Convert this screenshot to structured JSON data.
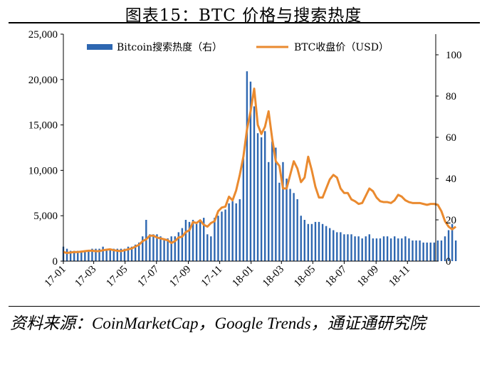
{
  "title": "图表15：BTC 价格与搜索热度",
  "source": "资料来源：CoinMarketCap，Google Trends，通证通研究院",
  "colors": {
    "bar": "#2e67b1",
    "line": "#ea8a2f",
    "axis": "#000000"
  },
  "chart_data": {
    "type": "bar+line",
    "title": "图表15：BTC 价格与搜索热度",
    "x_ticks": [
      "17-01",
      "17-03",
      "17-05",
      "17-07",
      "17-09",
      "17-11",
      "18-01",
      "18-03",
      "18-05",
      "18-07",
      "18-09",
      "18-11"
    ],
    "y_left": {
      "min": 0,
      "max": 25000,
      "ticks": [
        "0",
        "5,000",
        "10,000",
        "15,000",
        "20,000",
        "25,000"
      ]
    },
    "y_right": {
      "min": 0,
      "max": 110,
      "ticks": [
        "0",
        "20",
        "40",
        "60",
        "80",
        "100"
      ]
    },
    "grid": false,
    "legend_position": "top",
    "series": [
      {
        "name": "Bitcoin搜索热度（右）",
        "type": "bar",
        "axis": "right",
        "x_start": "2017-01-01",
        "interval_days": 7,
        "values": [
          7,
          6,
          5,
          5,
          5,
          5,
          5,
          5,
          6,
          6,
          6,
          7,
          6,
          6,
          6,
          6,
          6,
          6,
          7,
          7,
          8,
          9,
          12,
          20,
          13,
          13,
          13,
          12,
          11,
          11,
          12,
          12,
          14,
          16,
          20,
          19,
          20,
          18,
          20,
          21,
          13,
          12,
          21,
          22,
          24,
          25,
          28,
          29,
          28,
          30,
          50,
          92,
          87,
          75,
          62,
          60,
          63,
          48,
          58,
          55,
          38,
          48,
          40,
          35,
          33,
          30,
          22,
          20,
          18,
          18,
          19,
          19,
          18,
          17,
          16,
          15,
          14,
          14,
          13,
          13,
          13,
          12,
          12,
          11,
          12,
          13,
          11,
          11,
          11,
          12,
          12,
          11,
          12,
          11,
          11,
          12,
          11,
          10,
          10,
          10,
          9,
          9,
          9,
          9,
          10,
          10,
          12,
          15,
          18,
          10
        ]
      },
      {
        "name": "BTC收盘价（USD）",
        "type": "line",
        "axis": "left",
        "x_start": "2017-01-01",
        "interval_days": 7,
        "values": [
          1000,
          900,
          950,
          1000,
          1000,
          1050,
          1100,
          1150,
          1150,
          1100,
          1100,
          1200,
          1250,
          1300,
          1200,
          1150,
          1100,
          1200,
          1300,
          1400,
          1600,
          1800,
          2200,
          2400,
          2800,
          2800,
          2600,
          2500,
          2400,
          2300,
          2000,
          2200,
          2600,
          2700,
          3200,
          3400,
          4300,
          4200,
          4500,
          4000,
          3800,
          4200,
          4400,
          5500,
          5900,
          6000,
          7100,
          6700,
          7800,
          9500,
          11500,
          14500,
          16500,
          19000,
          15000,
          14000,
          14800,
          16500,
          13500,
          11000,
          10500,
          8000,
          8000,
          9500,
          11000,
          10200,
          8700,
          9200,
          11500,
          10000,
          8200,
          7000,
          7000,
          8000,
          9000,
          9500,
          9200,
          8000,
          7500,
          7500,
          6800,
          6600,
          6300,
          6400,
          7200,
          8000,
          7700,
          7000,
          6600,
          6500,
          6500,
          6400,
          6700,
          7300,
          7100,
          6700,
          6500,
          6400,
          6400,
          6400,
          6300,
          6200,
          6300,
          6300,
          6200,
          5500,
          4400,
          3800,
          3500,
          3800
        ]
      }
    ]
  }
}
